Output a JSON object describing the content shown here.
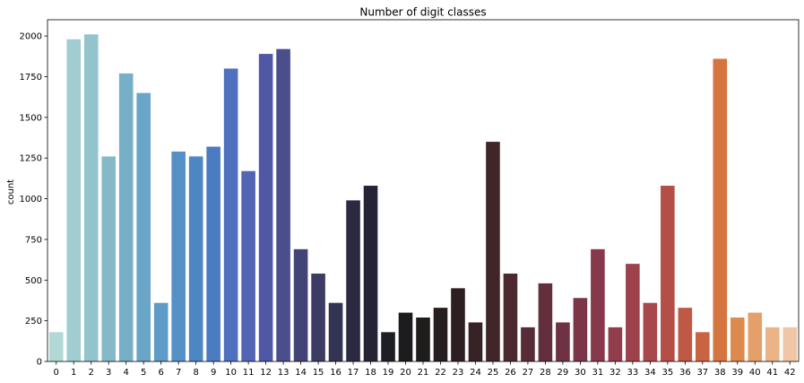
{
  "chart_data": {
    "type": "bar",
    "title": "Number of digit classes",
    "xlabel": "",
    "ylabel": "count",
    "ylim": [
      0,
      2100
    ],
    "yticks": [
      0,
      250,
      500,
      750,
      1000,
      1250,
      1500,
      1750,
      2000
    ],
    "grid": false,
    "categories": [
      "0",
      "1",
      "2",
      "3",
      "4",
      "5",
      "6",
      "7",
      "8",
      "9",
      "10",
      "11",
      "12",
      "13",
      "14",
      "15",
      "16",
      "17",
      "18",
      "19",
      "20",
      "21",
      "22",
      "23",
      "24",
      "25",
      "26",
      "27",
      "28",
      "29",
      "30",
      "31",
      "32",
      "33",
      "34",
      "35",
      "36",
      "37",
      "38",
      "39",
      "40",
      "41",
      "42"
    ],
    "values": [
      180,
      1980,
      2010,
      1260,
      1770,
      1650,
      360,
      1290,
      1260,
      1320,
      1800,
      1170,
      1890,
      1920,
      690,
      540,
      360,
      990,
      1080,
      180,
      300,
      270,
      330,
      450,
      240,
      1350,
      540,
      210,
      480,
      240,
      390,
      690,
      210,
      600,
      360,
      1080,
      330,
      180,
      1860,
      270,
      300,
      210,
      210
    ],
    "colors": [
      "#b2d8d6",
      "#9fcdd1",
      "#93c3cc",
      "#86b9c8",
      "#76afc6",
      "#69a5c6",
      "#5e9bc6",
      "#5590c6",
      "#4e85c3",
      "#4b7bc0",
      "#4f70bc",
      "#5165b4",
      "#5058a6",
      "#4b4e8c",
      "#434476",
      "#3b3b64",
      "#333353",
      "#2c2a42",
      "#252434",
      "#1e1e25",
      "#1c1c1f",
      "#1f1c1c",
      "#251d1e",
      "#2d1f21",
      "#372325",
      "#412629",
      "#4c292f",
      "#582c36",
      "#632f3c",
      "#6f3242",
      "#7b3547",
      "#86394b",
      "#923d4c",
      "#9d424c",
      "#a9484a",
      "#b44f48",
      "#bf5844",
      "#c96341",
      "#d4743f",
      "#dd8a4f",
      "#e59f68",
      "#ebb386",
      "#f0c6a6"
    ]
  }
}
